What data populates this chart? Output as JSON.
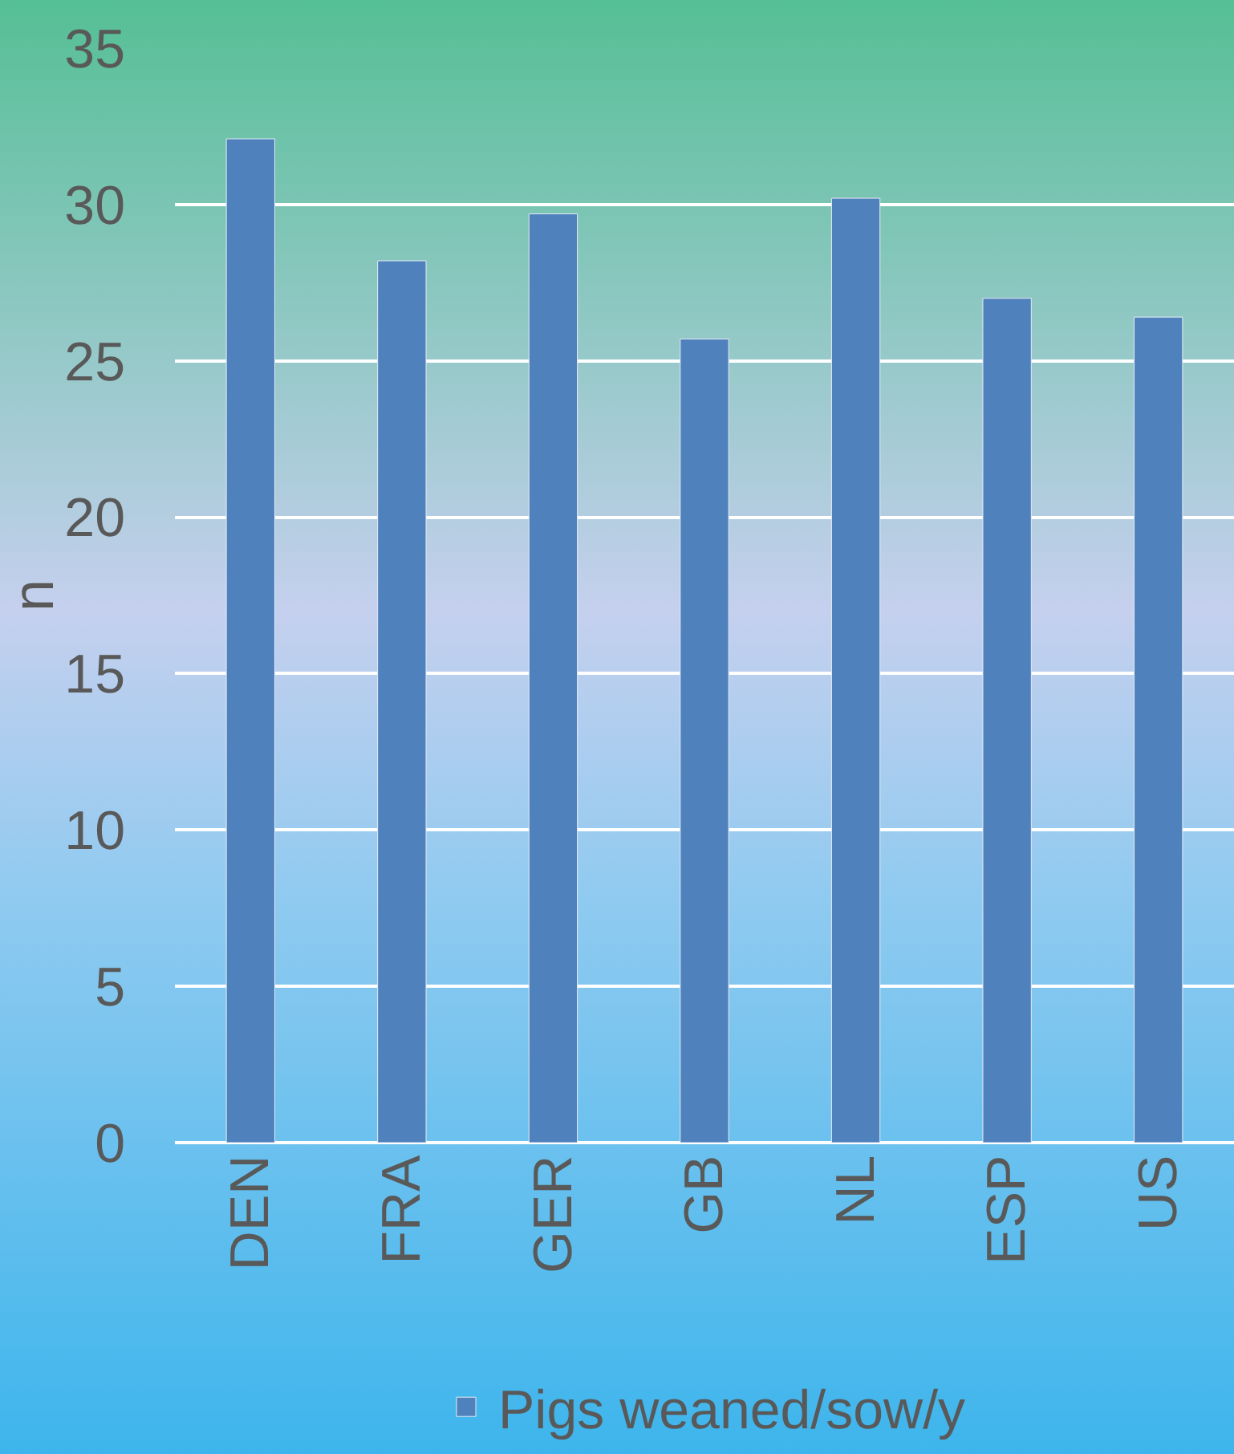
{
  "chart_data": {
    "type": "bar",
    "ylabel": "n",
    "categories": [
      "DEN",
      "FRA",
      "GER",
      "GB",
      "NL",
      "ESP",
      "US"
    ],
    "series": [
      {
        "name": "Pigs weaned/sow/y",
        "color": "#4f81bd",
        "values": [
          32.1,
          28.2,
          29.7,
          25.7,
          30.2,
          27.0,
          26.4
        ]
      }
    ],
    "ylim": [
      0,
      35
    ],
    "yticks": [
      0,
      5,
      10,
      15,
      20,
      25,
      30,
      35
    ],
    "grid": "y",
    "legend": "bottom"
  }
}
